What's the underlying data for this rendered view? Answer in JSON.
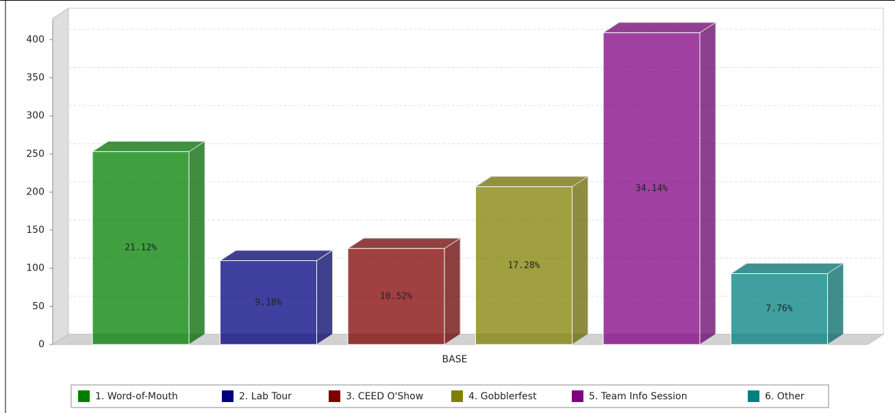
{
  "chart_data": {
    "type": "bar3d",
    "categories": [
      "BASE"
    ],
    "series": [
      {
        "name": "1. Word-of-Mouth",
        "color": "#008000",
        "values": [
          253
        ],
        "data_labels": [
          "21.12%"
        ]
      },
      {
        "name": "2. Lab Tour",
        "color": "#000080",
        "values": [
          110
        ],
        "data_labels": [
          "9.18%"
        ]
      },
      {
        "name": "3. CEED O'Show",
        "color": "#800000",
        "values": [
          126
        ],
        "data_labels": [
          "10.52%"
        ]
      },
      {
        "name": "4. Gobblerfest",
        "color": "#808000",
        "values": [
          207
        ],
        "data_labels": [
          "17.28%"
        ]
      },
      {
        "name": "5. Team Info Session",
        "color": "#800080",
        "values": [
          409
        ],
        "data_labels": [
          "34.14%"
        ]
      },
      {
        "name": "6. Other",
        "color": "#008080",
        "values": [
          93
        ],
        "data_labels": [
          "7.76%"
        ]
      }
    ],
    "ylim": [
      0,
      425
    ],
    "yticks": [
      0,
      50,
      100,
      150,
      200,
      250,
      300,
      350,
      400
    ],
    "grid": true,
    "legend": "bottom"
  }
}
